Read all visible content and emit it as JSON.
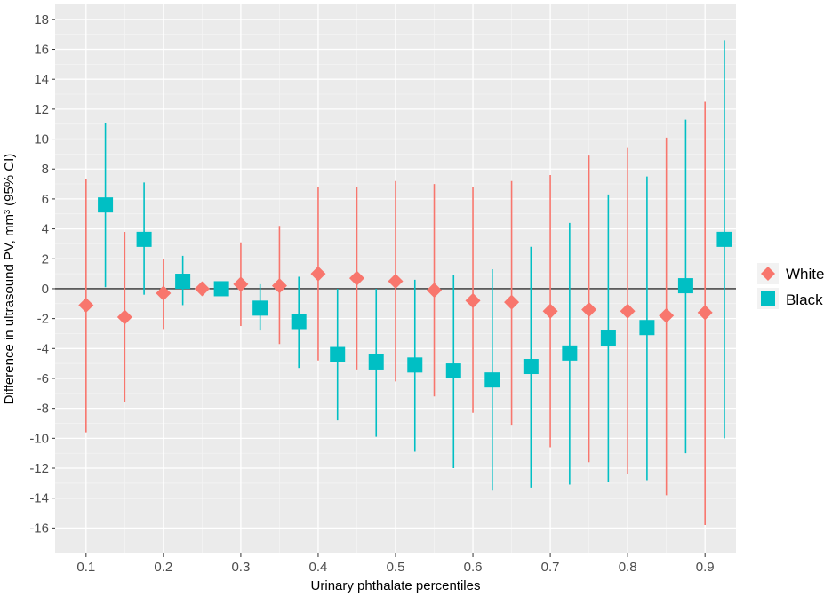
{
  "chart_data": {
    "type": "scatter",
    "xlabel": "Urinary phthalate percentiles",
    "ylabel": "Difference in ultrasound PV, mm³ (95% CI)",
    "xlim": [
      0.06,
      0.94
    ],
    "ylim": [
      -17.7,
      19.0
    ],
    "x_ticks": [
      0.1,
      0.2,
      0.3,
      0.4,
      0.5,
      0.6,
      0.7,
      0.8,
      0.9
    ],
    "x_tick_labels": [
      "0.1",
      "0.2",
      "0.3",
      "0.4",
      "0.5",
      "0.6",
      "0.7",
      "0.8",
      "0.9"
    ],
    "y_ticks": [
      -16,
      -14,
      -12,
      -10,
      -8,
      -6,
      -4,
      -2,
      0,
      2,
      4,
      6,
      8,
      10,
      12,
      14,
      16,
      18
    ],
    "y_tick_labels": [
      "-16",
      "-14",
      "-12",
      "-10",
      "-8",
      "-6",
      "-4",
      "-2",
      "0",
      "2",
      "4",
      "6",
      "8",
      "10",
      "12",
      "14",
      "16",
      "18"
    ],
    "reference_line": 0,
    "grid": true,
    "legend_position": "right",
    "series": [
      {
        "name": "White",
        "marker": "diamond",
        "color": "#F8766D",
        "points": [
          {
            "x": 0.1,
            "y": -1.1,
            "lo": -9.6,
            "hi": 7.3
          },
          {
            "x": 0.15,
            "y": -1.9,
            "lo": -7.6,
            "hi": 3.8
          },
          {
            "x": 0.2,
            "y": -0.3,
            "lo": -2.7,
            "hi": 2.0
          },
          {
            "x": 0.25,
            "y": 0.0,
            "lo": 0.0,
            "hi": 0.0
          },
          {
            "x": 0.3,
            "y": 0.3,
            "lo": -2.5,
            "hi": 3.1
          },
          {
            "x": 0.35,
            "y": 0.2,
            "lo": -3.7,
            "hi": 4.2
          },
          {
            "x": 0.4,
            "y": 1.0,
            "lo": -4.8,
            "hi": 6.8
          },
          {
            "x": 0.45,
            "y": 0.7,
            "lo": -5.4,
            "hi": 6.8
          },
          {
            "x": 0.5,
            "y": 0.5,
            "lo": -6.2,
            "hi": 7.2
          },
          {
            "x": 0.55,
            "y": -0.1,
            "lo": -7.2,
            "hi": 7.0
          },
          {
            "x": 0.6,
            "y": -0.8,
            "lo": -8.3,
            "hi": 6.8
          },
          {
            "x": 0.65,
            "y": -0.9,
            "lo": -9.1,
            "hi": 7.2
          },
          {
            "x": 0.7,
            "y": -1.5,
            "lo": -10.6,
            "hi": 7.6
          },
          {
            "x": 0.75,
            "y": -1.4,
            "lo": -11.6,
            "hi": 8.9
          },
          {
            "x": 0.8,
            "y": -1.5,
            "lo": -12.4,
            "hi": 9.4
          },
          {
            "x": 0.85,
            "y": -1.8,
            "lo": -13.8,
            "hi": 10.1
          },
          {
            "x": 0.9,
            "y": -1.6,
            "lo": -15.8,
            "hi": 12.5
          }
        ]
      },
      {
        "name": "Black",
        "marker": "square",
        "color": "#00BFC4",
        "points": [
          {
            "x": 0.125,
            "y": 5.6,
            "lo": 0.1,
            "hi": 11.1
          },
          {
            "x": 0.175,
            "y": 3.3,
            "lo": -0.4,
            "hi": 7.1
          },
          {
            "x": 0.225,
            "y": 0.5,
            "lo": -1.1,
            "hi": 2.2
          },
          {
            "x": 0.275,
            "y": 0.0,
            "lo": 0.0,
            "hi": 0.0
          },
          {
            "x": 0.325,
            "y": -1.3,
            "lo": -2.8,
            "hi": 0.3
          },
          {
            "x": 0.375,
            "y": -2.2,
            "lo": -5.3,
            "hi": 0.8
          },
          {
            "x": 0.425,
            "y": -4.4,
            "lo": -8.8,
            "hi": 0.0
          },
          {
            "x": 0.475,
            "y": -4.9,
            "lo": -9.9,
            "hi": 0.0
          },
          {
            "x": 0.525,
            "y": -5.1,
            "lo": -10.9,
            "hi": 0.6
          },
          {
            "x": 0.575,
            "y": -5.5,
            "lo": -12.0,
            "hi": 0.9
          },
          {
            "x": 0.625,
            "y": -6.1,
            "lo": -13.5,
            "hi": 1.3
          },
          {
            "x": 0.675,
            "y": -5.2,
            "lo": -13.3,
            "hi": 2.8
          },
          {
            "x": 0.725,
            "y": -4.3,
            "lo": -13.1,
            "hi": 4.4
          },
          {
            "x": 0.775,
            "y": -3.3,
            "lo": -12.9,
            "hi": 6.3
          },
          {
            "x": 0.825,
            "y": -2.6,
            "lo": -12.8,
            "hi": 7.5
          },
          {
            "x": 0.875,
            "y": 0.2,
            "lo": -11.0,
            "hi": 11.3
          },
          {
            "x": 0.925,
            "y": 3.3,
            "lo": -10.0,
            "hi": 16.6
          }
        ]
      }
    ]
  }
}
